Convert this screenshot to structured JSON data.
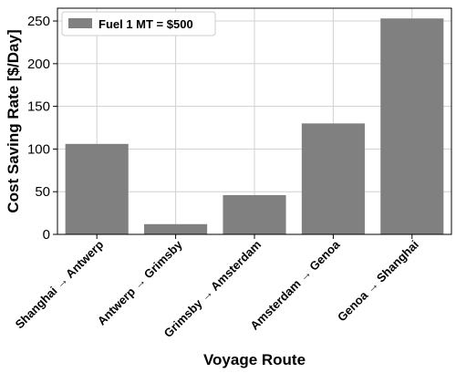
{
  "chart_data": {
    "type": "bar",
    "categories": [
      "Shanghai → Antwerp",
      "Antwerp → Grimsby",
      "Grimsby → Amsterdam",
      "Amsterdam → Genoa",
      "Genoa → Shanghai"
    ],
    "series": [
      {
        "name": "Fuel 1 MT = $500",
        "values": [
          106,
          12,
          46,
          130,
          253
        ],
        "color": "#808080"
      }
    ],
    "xlabel": "Voyage Route",
    "ylabel": "Cost Saving Rate [$/Day]",
    "ylim": [
      0,
      265
    ],
    "yticks": [
      0,
      50,
      100,
      150,
      200,
      250
    ],
    "grid": true,
    "legend_position": "top-left"
  }
}
